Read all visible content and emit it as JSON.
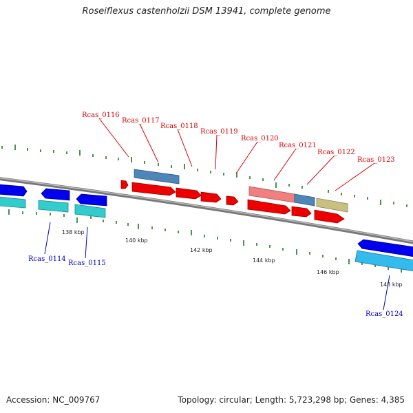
{
  "title": "Roseiflexus castenholzii DSM 13941, complete genome",
  "footer": {
    "accession": "Accession: NC_009767",
    "summary": "Topology: circular; Length: 5,723,298 bp; Genes: 4,385"
  },
  "scale_labels": [
    "138 kbp",
    "140 kbp",
    "142 kbp",
    "144 kbp",
    "146 kbp",
    "148 kbp"
  ],
  "gene_labels_top": [
    "Rcas_0116",
    "Rcas_0117",
    "Rcas_0118",
    "Rcas_0119",
    "Rcas_0120",
    "Rcas_0121",
    "Rcas_0122",
    "Rcas_0123"
  ],
  "gene_labels_bottom": [
    "Rcas_0114",
    "Rcas_0115",
    "Rcas_0124"
  ],
  "colors": {
    "label_top": "#dd0000",
    "label_bottom": "#0000cc",
    "cds_red": "#ee0000",
    "cds_blue": "#0000ee",
    "cds_cyan": "#33cccc",
    "cds_steel": "#4f86b8",
    "cds_pink": "#f08080",
    "cds_khaki": "#c8c080",
    "tick_green": "#1a7a1a",
    "backbone": "#888888"
  }
}
